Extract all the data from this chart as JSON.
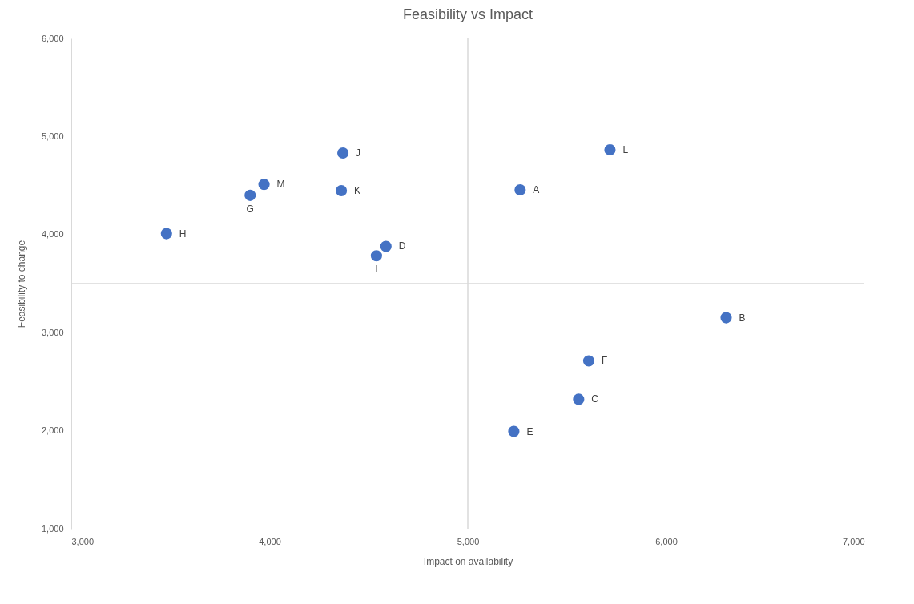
{
  "chart_data": {
    "type": "scatter",
    "title": "Feasibility vs Impact",
    "xlabel": "Impact on availability",
    "ylabel": "Feasibility to change",
    "x": [
      5264,
      6303,
      5559,
      4587,
      5232,
      5610,
      3902,
      3480,
      4539,
      4370,
      4362,
      5717,
      3972
    ],
    "values": [
      4456,
      3152,
      2320,
      3880,
      1992,
      2712,
      4400,
      4010,
      3784,
      4832,
      4448,
      4864,
      4512
    ],
    "color": "#4472c4",
    "marker": "circle",
    "xlim": [
      3000,
      7000
    ],
    "xticks": [
      {
        "value": 3000,
        "label": "3,000"
      },
      {
        "value": 4000,
        "label": "4,000"
      },
      {
        "value": 5000,
        "label": "5,000"
      },
      {
        "value": 6000,
        "label": "6,000"
      },
      {
        "value": 7000,
        "label": "7,000"
      }
    ],
    "ylim": [
      1000,
      6000
    ],
    "yticks": [
      {
        "value": 1000,
        "label": "1,000"
      },
      {
        "value": 2000,
        "label": "2,000"
      },
      {
        "value": 3000,
        "label": "3,000"
      },
      {
        "value": 4000,
        "label": "4,000"
      },
      {
        "value": 5000,
        "label": "5,000"
      },
      {
        "value": 6000,
        "label": "6,000"
      }
    ],
    "ref_lines": [
      {
        "axis": "x",
        "value": 5000,
        "color": "#d9d9d9"
      },
      {
        "axis": "y",
        "value": 3500,
        "color": "#d9d9d9"
      }
    ],
    "annotations": [
      {
        "text": "A",
        "x": 5264,
        "y": 4456
      },
      {
        "text": "B",
        "x": 6303,
        "y": 3152
      },
      {
        "text": "C",
        "x": 5559,
        "y": 2320
      },
      {
        "text": "D",
        "x": 4587,
        "y": 3880
      },
      {
        "text": "E",
        "x": 5232,
        "y": 1992
      },
      {
        "text": "F",
        "x": 5610,
        "y": 2712
      },
      {
        "text": "G",
        "x": 3902,
        "y": 4400
      },
      {
        "text": "H",
        "x": 3480,
        "y": 4010
      },
      {
        "text": "I",
        "x": 4539,
        "y": 3784
      },
      {
        "text": "J",
        "x": 4370,
        "y": 4832
      },
      {
        "text": "K",
        "x": 4362,
        "y": 4448
      },
      {
        "text": "L",
        "x": 5717,
        "y": 4864
      },
      {
        "text": "M",
        "x": 3972,
        "y": 4512
      }
    ]
  }
}
